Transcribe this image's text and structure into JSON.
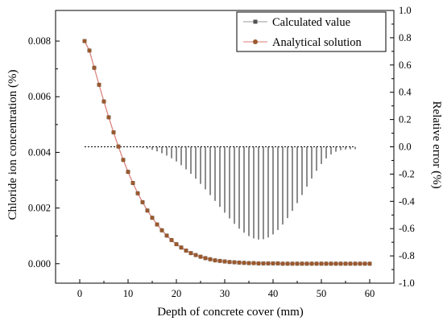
{
  "chart_data": {
    "type": "line",
    "xlabel": "Depth of concrete cover (mm)",
    "ylabel": "Chloride ion concentration (%)",
    "y2label": "Relative error (%)",
    "xlim": [
      -5,
      65
    ],
    "ylim": [
      -0.0007,
      0.0091
    ],
    "y2lim": [
      -1.0,
      1.0
    ],
    "xticks": [
      0,
      10,
      20,
      30,
      40,
      50,
      60
    ],
    "yticks": [
      0.0,
      0.002,
      0.004,
      0.006,
      0.008
    ],
    "ytick_labels": [
      "0.000",
      "0.002",
      "0.004",
      "0.006",
      "0.008"
    ],
    "y2ticks": [
      -1.0,
      -0.8,
      -0.6,
      -0.4,
      -0.2,
      0.0,
      0.2,
      0.4,
      0.6,
      0.8,
      1.0
    ],
    "y2tick_labels": [
      "-1.0",
      "-0.8",
      "-0.6",
      "-0.4",
      "-0.2",
      "0.0",
      "0.2",
      "0.4",
      "0.6",
      "0.8",
      "1.0"
    ],
    "legend": {
      "placement": "top-right"
    },
    "colors": {
      "calculated": "#505050",
      "analytical": "#d97b74",
      "analytical_marker": "#9a5a2e",
      "error": "#000000"
    },
    "series": [
      {
        "name": "Calculated value",
        "axis": "left",
        "marker": "square",
        "x": [
          1,
          2,
          3,
          4,
          5,
          6,
          7,
          8,
          9,
          10,
          11,
          12,
          13,
          14,
          15,
          16,
          17,
          18,
          19,
          20,
          21,
          22,
          23,
          24,
          25,
          26,
          27,
          28,
          29,
          30,
          31,
          32,
          33,
          34,
          35,
          36,
          37,
          38,
          39,
          40,
          41,
          42,
          43,
          44,
          45,
          46,
          47,
          48,
          49,
          50,
          51,
          52,
          53,
          54,
          55,
          56,
          57,
          58,
          59,
          60
        ],
        "values": [
          0.008,
          0.00766,
          0.00704,
          0.00643,
          0.00583,
          0.00526,
          0.00472,
          0.00421,
          0.00373,
          0.0033,
          0.0029,
          0.00253,
          0.00221,
          0.00191,
          0.00165,
          0.00141,
          0.0012,
          0.00101,
          0.00085,
          0.0007,
          0.00058,
          0.00047,
          0.00038,
          0.00031,
          0.00025,
          0.0002,
          0.00016,
          0.00012,
          0.0001,
          8e-05,
          6e-05,
          5e-05,
          4e-05,
          3e-05,
          2e-05,
          2e-05,
          1e-05,
          1e-05,
          1e-05,
          1e-05,
          1e-05,
          0.0,
          0.0,
          0.0,
          0.0,
          0.0,
          0.0,
          0.0,
          0.0,
          0.0,
          0.0,
          0.0,
          0.0,
          0.0,
          0.0,
          0.0,
          0.0,
          0.0,
          0.0,
          0.0
        ]
      },
      {
        "name": "Analytical solution",
        "axis": "left",
        "marker": "circle",
        "x": [
          1,
          2,
          3,
          4,
          5,
          6,
          7,
          8,
          9,
          10,
          11,
          12,
          13,
          14,
          15,
          16,
          17,
          18,
          19,
          20,
          21,
          22,
          23,
          24,
          25,
          26,
          27,
          28,
          29,
          30,
          31,
          32,
          33,
          34,
          35,
          36,
          37,
          38,
          39,
          40,
          41,
          42,
          43,
          44,
          45,
          46,
          47,
          48,
          49,
          50,
          51,
          52,
          53,
          54,
          55,
          56,
          57,
          58,
          59,
          60
        ],
        "values": [
          0.008,
          0.00766,
          0.00704,
          0.00643,
          0.00583,
          0.00526,
          0.00472,
          0.00421,
          0.00373,
          0.0033,
          0.0029,
          0.00253,
          0.00221,
          0.00191,
          0.00165,
          0.00141,
          0.0012,
          0.00101,
          0.00085,
          0.0007,
          0.00058,
          0.00047,
          0.00038,
          0.00031,
          0.00025,
          0.0002,
          0.00016,
          0.00012,
          0.0001,
          8e-05,
          6e-05,
          5e-05,
          4e-05,
          3e-05,
          2e-05,
          2e-05,
          1e-05,
          1e-05,
          1e-05,
          1e-05,
          1e-05,
          0.0,
          0.0,
          0.0,
          0.0,
          0.0,
          0.0,
          0.0,
          0.0,
          0.0,
          0.0,
          0.0,
          0.0,
          0.0,
          0.0,
          0.0,
          0.0,
          0.0,
          0.0,
          0.0
        ]
      },
      {
        "axis": "right",
        "style": "stem",
        "x": [
          1,
          2,
          3,
          4,
          5,
          6,
          7,
          8,
          9,
          10,
          11,
          12,
          13,
          14,
          15,
          16,
          17,
          18,
          19,
          20,
          21,
          22,
          23,
          24,
          25,
          26,
          27,
          28,
          29,
          30,
          31,
          32,
          33,
          34,
          35,
          36,
          37,
          38,
          39,
          40,
          41,
          42,
          43,
          44,
          45,
          46,
          47,
          48,
          49,
          50,
          51,
          52,
          53,
          54,
          55,
          56,
          57
        ],
        "values": [
          0.0,
          0.0,
          0.0,
          0.0,
          0.0,
          0.0,
          0.0,
          0.0,
          0.0,
          0.0,
          -0.002,
          -0.004,
          -0.008,
          -0.014,
          -0.022,
          -0.033,
          -0.047,
          -0.064,
          -0.084,
          -0.108,
          -0.135,
          -0.165,
          -0.198,
          -0.234,
          -0.272,
          -0.312,
          -0.354,
          -0.397,
          -0.44,
          -0.483,
          -0.525,
          -0.565,
          -0.6,
          -0.63,
          -0.655,
          -0.672,
          -0.68,
          -0.678,
          -0.665,
          -0.642,
          -0.61,
          -0.57,
          -0.523,
          -0.47,
          -0.413,
          -0.353,
          -0.292,
          -0.232,
          -0.176,
          -0.126,
          -0.085,
          -0.055,
          -0.036,
          -0.025,
          -0.02,
          -0.018,
          -0.018
        ]
      }
    ]
  }
}
